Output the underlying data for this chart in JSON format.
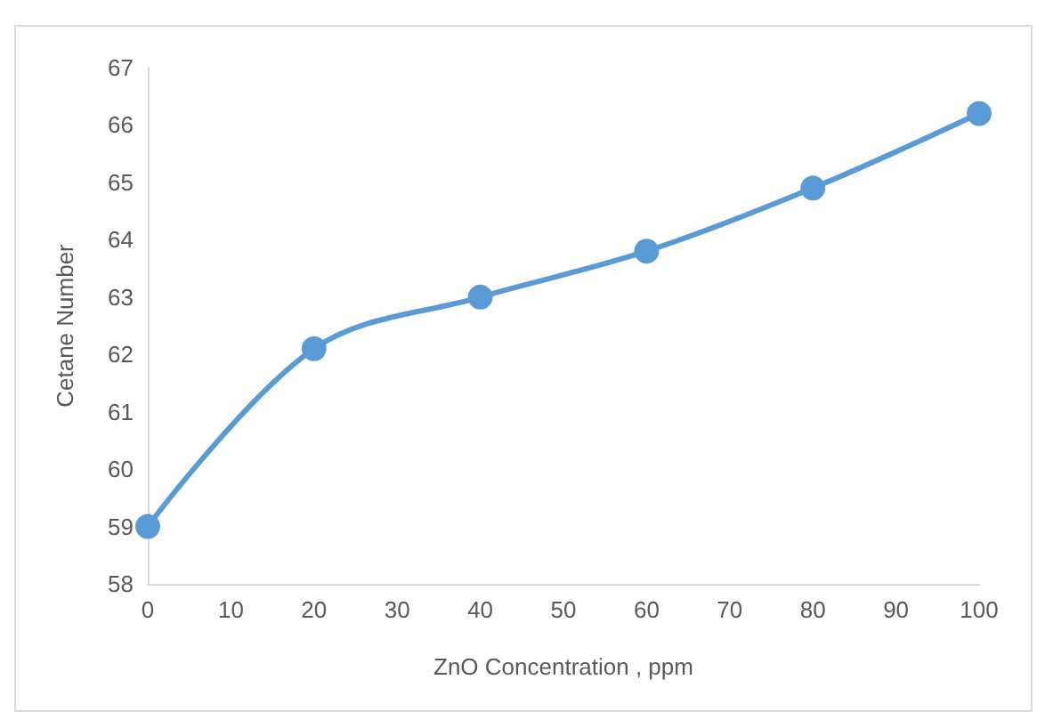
{
  "chart_data": {
    "type": "line",
    "xlabel": "ZnO Concentration , ppm",
    "ylabel": "Cetane Number",
    "x": [
      0,
      20,
      40,
      60,
      80,
      100
    ],
    "series": [
      {
        "color": "#5b9bd5",
        "values": [
          59,
          62.1,
          63,
          63.8,
          64.9,
          66.2
        ]
      }
    ],
    "xlim": [
      0,
      100
    ],
    "xticks": [
      0,
      10,
      20,
      30,
      40,
      50,
      60,
      70,
      80,
      90,
      100
    ],
    "ylim": [
      58,
      67
    ],
    "yticks": [
      58,
      59,
      60,
      61,
      62,
      63,
      64,
      65,
      66,
      67
    ],
    "grid": false,
    "marker": "circle",
    "line_style": "solid"
  }
}
